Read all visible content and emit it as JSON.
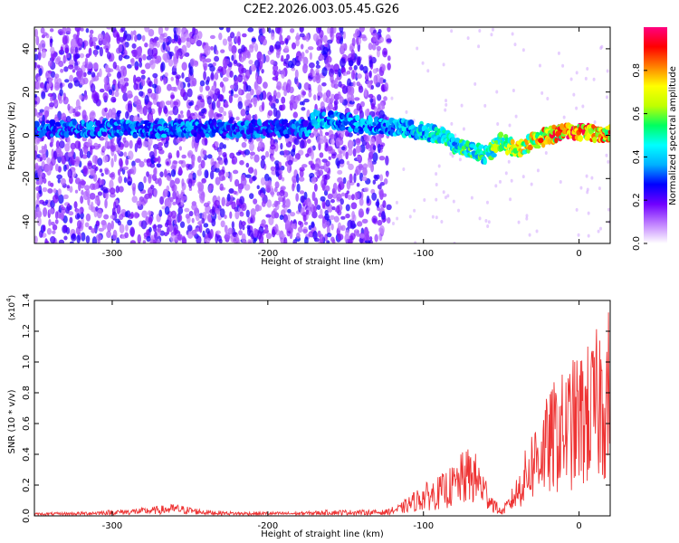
{
  "title": "C2E2.2026.003.05.45.G26",
  "chart_data": [
    {
      "type": "heatmap",
      "name": "spectrogram",
      "xlabel": "Height of straight line (km)",
      "ylabel": "Frequency (Hz)",
      "xlim": [
        -350,
        20
      ],
      "ylim": [
        -50,
        50
      ],
      "xticks": [
        "-300",
        "-200",
        "-100",
        "0"
      ],
      "xtick_values": [
        -300,
        -200,
        -100,
        0
      ],
      "yticks": [
        "-40",
        "-20",
        "0",
        "20",
        "40"
      ],
      "ytick_values": [
        -40,
        -20,
        0,
        20,
        40
      ],
      "grid": false,
      "colorbar": {
        "label": "Normalized spectral amplitude",
        "range": [
          0.0,
          1.0
        ],
        "ticks": [
          "0.0",
          "0.2",
          "0.4",
          "0.6",
          "0.8"
        ],
        "tick_values": [
          0.0,
          0.2,
          0.4,
          0.6,
          0.8
        ],
        "colormap": [
          "#ffffff",
          "#c080ff",
          "#7000ff",
          "#0000ff",
          "#00b0ff",
          "#00ffff",
          "#00ff60",
          "#c0ff00",
          "#ffff00",
          "#ff8000",
          "#ff0000",
          "#ff0080"
        ]
      },
      "signal_trace": {
        "height_km": [
          -340,
          -300,
          -260,
          -220,
          -200,
          -175,
          -170,
          -160,
          -140,
          -120,
          -100,
          -90,
          -80,
          -70,
          -60,
          -50,
          -45,
          -40,
          -30,
          -20,
          -10,
          0,
          10,
          20
        ],
        "frequency_hz": [
          3,
          3,
          3,
          3,
          3,
          3,
          8,
          7,
          5,
          4,
          2,
          0,
          -4,
          -7,
          -9,
          -3,
          -5,
          -7,
          -3,
          0,
          2,
          2,
          1,
          1
        ],
        "amplitude": [
          0.35,
          0.4,
          0.4,
          0.38,
          0.35,
          0.4,
          0.5,
          0.45,
          0.42,
          0.45,
          0.5,
          0.55,
          0.55,
          0.6,
          0.6,
          0.7,
          0.75,
          0.8,
          0.85,
          0.9,
          0.95,
          1.0,
          0.95,
          0.95
        ]
      },
      "noise_cutoff_km": -122
    },
    {
      "type": "line",
      "name": "snr",
      "xlabel": "Height of straight line (km)",
      "ylabel": "SNR (10 * v/v)",
      "y_multiplier": "(x10",
      "y_multiplier_exp": "4",
      "y_multiplier_close": ")",
      "xlim": [
        -350,
        20
      ],
      "ylim": [
        0,
        1.4
      ],
      "xticks": [
        "-300",
        "-200",
        "-100",
        "0"
      ],
      "xtick_values": [
        -300,
        -200,
        -100,
        0
      ],
      "yticks": [
        "0.0",
        "0.2",
        "0.4",
        "0.6",
        "0.8",
        "1.0",
        "1.2",
        "1.4"
      ],
      "ytick_values": [
        0.0,
        0.2,
        0.4,
        0.6,
        0.8,
        1.0,
        1.2,
        1.4
      ],
      "grid": false,
      "color": "#ee3333",
      "envelope": {
        "x": [
          -350,
          -320,
          -300,
          -280,
          -260,
          -240,
          -220,
          -200,
          -180,
          -160,
          -140,
          -125,
          -115,
          -105,
          -100,
          -90,
          -80,
          -75,
          -70,
          -65,
          -60,
          -55,
          -50,
          -45,
          -40,
          -35,
          -30,
          -25,
          -20,
          -15,
          -10,
          -5,
          0,
          5,
          10,
          15,
          20
        ],
        "y": [
          0.015,
          0.02,
          0.03,
          0.04,
          0.06,
          0.03,
          0.02,
          0.02,
          0.02,
          0.03,
          0.03,
          0.03,
          0.06,
          0.13,
          0.16,
          0.2,
          0.26,
          0.32,
          0.35,
          0.3,
          0.2,
          0.1,
          0.03,
          0.1,
          0.2,
          0.32,
          0.45,
          0.55,
          0.6,
          0.7,
          0.72,
          0.78,
          0.82,
          0.86,
          0.9,
          1.05,
          1.05
        ]
      }
    }
  ]
}
